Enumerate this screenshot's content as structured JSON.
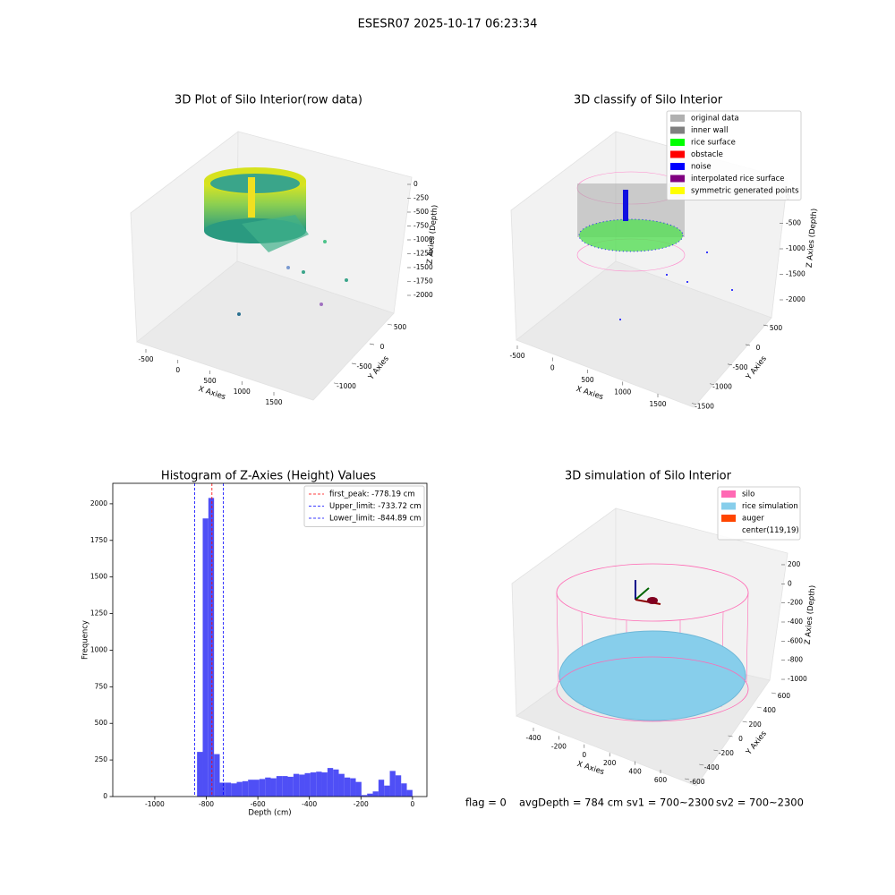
{
  "suptitle": "ESESR07 2025-10-17 06:23:34",
  "chart_data": [
    {
      "type": "scatter3d",
      "title": "3D Plot of Silo Interior(row data)",
      "xlabel": "X Axies",
      "ylabel": "Y Axies",
      "zlabel": "Z Axies (Depth)",
      "xlim": [
        -700,
        1900
      ],
      "xticks": [
        -500,
        0,
        500,
        1000,
        1500
      ],
      "ylim": [
        -1300,
        800
      ],
      "yticks": [
        500,
        0,
        -500,
        -1000
      ],
      "zlim": [
        -2100,
        100
      ],
      "zticks": [
        0,
        -250,
        -500,
        -750,
        -1000,
        -1250,
        -1500,
        -1750,
        -2000
      ]
    },
    {
      "type": "scatter3d",
      "title": "3D classify of Silo Interior",
      "xlabel": "X Axies",
      "ylabel": "Y Axies",
      "zlabel": "Z Axies (Depth)",
      "xlim": [
        -700,
        1900
      ],
      "xticks": [
        -500,
        0,
        500,
        1000,
        1500
      ],
      "ylim": [
        -1700,
        800
      ],
      "yticks": [
        500,
        0,
        -500,
        -1000,
        -1500
      ],
      "zlim": [
        -2100,
        100
      ],
      "zticks": [
        0,
        -500,
        -1000,
        -1500,
        -2000
      ],
      "legend": [
        {
          "label": "original data",
          "color": "#b0b0b0"
        },
        {
          "label": "inner wall",
          "color": "#808080"
        },
        {
          "label": "rice surface",
          "color": "#00ff00"
        },
        {
          "label": "obstacle",
          "color": "#ff0000"
        },
        {
          "label": "noise",
          "color": "#0000ff"
        },
        {
          "label": "interpolated rice surface",
          "color": "#800080"
        },
        {
          "label": "symmetric generated points",
          "color": "#ffff00"
        }
      ]
    },
    {
      "type": "histogram",
      "title": "Histogram of Z-Axies (Height) Values",
      "xlabel": "Depth (cm)",
      "ylabel": "Frequency",
      "color": "#4f4ff6",
      "xlim": [
        -1163,
        56
      ],
      "xticks": [
        -1000,
        -800,
        -600,
        -400,
        -200,
        0
      ],
      "ylim": [
        0,
        2140
      ],
      "yticks": [
        0,
        250,
        500,
        750,
        1000,
        1250,
        1500,
        1750,
        2000
      ],
      "bins": [
        -1100,
        -1078,
        -1056,
        -1034,
        -1012,
        -990,
        -968,
        -946,
        -924,
        -902,
        -880,
        -858,
        -836,
        -814,
        -792,
        -770,
        -748,
        -726,
        -704,
        -682,
        -660,
        -638,
        -616,
        -594,
        -572,
        -550,
        -528,
        -506,
        -484,
        -462,
        -440,
        -418,
        -396,
        -374,
        -352,
        -330,
        -308,
        -286,
        -264,
        -242,
        -220,
        -198,
        -176,
        -154,
        -132,
        -110,
        -88,
        -66,
        -44,
        -22,
        0
      ],
      "counts": [
        0,
        0,
        0,
        0,
        0,
        0,
        0,
        0,
        0,
        0,
        0,
        0,
        305,
        1900,
        2040,
        290,
        95,
        95,
        90,
        100,
        105,
        115,
        115,
        120,
        130,
        125,
        140,
        140,
        135,
        155,
        150,
        160,
        165,
        170,
        165,
        195,
        185,
        155,
        130,
        125,
        100,
        10,
        20,
        35,
        115,
        75,
        175,
        145,
        90,
        45
      ],
      "vlines": [
        {
          "name": "first_peak: -778.19 cm",
          "value": -778.19,
          "color": "#ff0000"
        },
        {
          "name": "Upper_limit: -733.72 cm",
          "value": -733.72,
          "color": "#0000ff"
        },
        {
          "name": "Lower_limit: -844.89 cm",
          "value": -844.89,
          "color": "#0000ff"
        }
      ]
    },
    {
      "type": "scatter3d",
      "title": "3D simulation of Silo Interior",
      "xlabel": "X Axies",
      "ylabel": "Y Axies",
      "zlabel": "Z Axies (Depth)",
      "xlim": [
        -500,
        700
      ],
      "xticks": [
        -400,
        -200,
        0,
        200,
        400,
        600
      ],
      "ylim": [
        -700,
        700
      ],
      "yticks": [
        600,
        400,
        200,
        0,
        -200,
        -400,
        -600
      ],
      "zlim": [
        -1100,
        300
      ],
      "zticks": [
        200,
        0,
        -200,
        -400,
        -600,
        -800,
        -1000
      ],
      "legend": [
        {
          "label": "silo",
          "color": "#ff69b4"
        },
        {
          "label": "rice simulation",
          "color": "#87ceeb"
        },
        {
          "label": "auger",
          "color": "#ff4500"
        },
        {
          "label": "center(119,19)",
          "color": null
        }
      ]
    }
  ],
  "footer": [
    "flag = 0",
    "avgDepth = 784 cm",
    "sv1 = 700~2300",
    "sv2 = 700~2300"
  ]
}
